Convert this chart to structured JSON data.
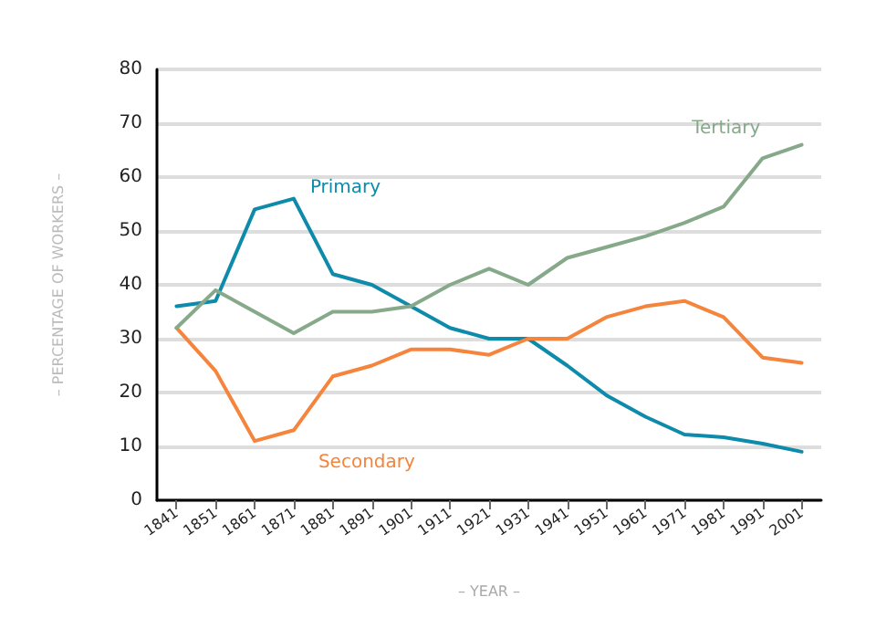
{
  "chart_data": {
    "type": "line",
    "xlabel": "– YEAR –",
    "ylabel": "– PERCENTAGE OF WORKERS –",
    "categories": [
      "1841",
      "1851",
      "1861",
      "1871",
      "1881",
      "1891",
      "1901",
      "1911",
      "1921",
      "1931",
      "1941",
      "1951",
      "1961",
      "1971",
      "1981",
      "1991",
      "2001"
    ],
    "series": [
      {
        "name": "Primary",
        "color": "#0e8bab",
        "values": [
          36,
          37,
          54,
          56,
          42,
          40,
          36,
          32,
          30,
          30,
          25,
          19.5,
          15.5,
          12.2,
          11.7,
          10.5,
          9
        ]
      },
      {
        "name": "Secondary",
        "color": "#f5843c",
        "values": [
          32,
          24,
          11,
          13,
          23,
          25,
          28,
          28,
          27,
          30,
          30,
          34,
          36,
          37,
          34,
          26.5,
          25.5
        ]
      },
      {
        "name": "Tertiary",
        "color": "#86a98a",
        "values": [
          32,
          39,
          35,
          31,
          35,
          35,
          36,
          40,
          43,
          40,
          45,
          47,
          49,
          51.5,
          54.5,
          63.5,
          66
        ]
      }
    ],
    "ylim": [
      0,
      80
    ],
    "yticks": [
      0,
      10,
      20,
      30,
      40,
      50,
      60,
      70,
      80
    ],
    "grid": "y",
    "legend": false,
    "marker": "none",
    "line_style": "solid"
  }
}
